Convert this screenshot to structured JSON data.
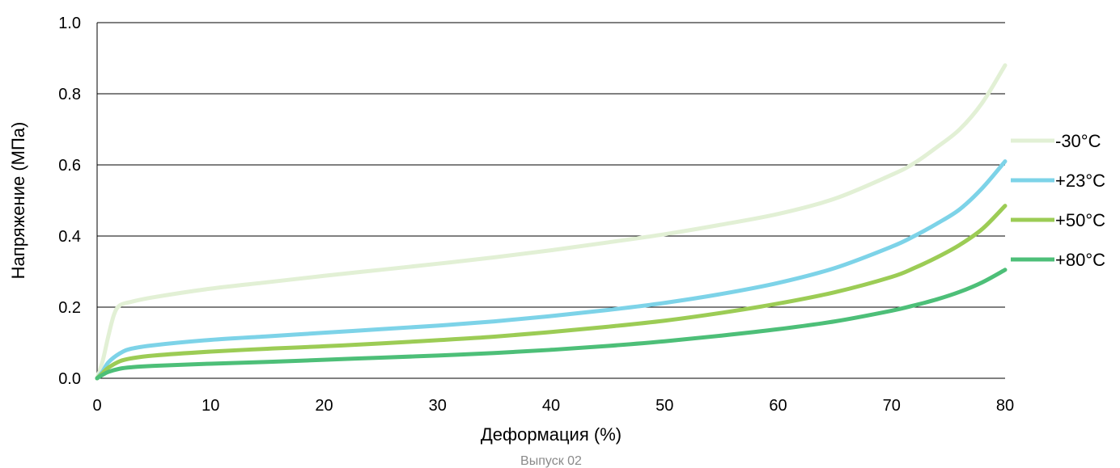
{
  "chart_data": {
    "type": "line",
    "xlabel": "Деформация (%)",
    "ylabel": "Напряжение (МПа)",
    "xlim": [
      0,
      80
    ],
    "ylim": [
      0,
      1.0
    ],
    "x_ticks": [
      "0",
      "10",
      "20",
      "30",
      "40",
      "50",
      "60",
      "70",
      "80"
    ],
    "y_ticks": [
      "0.0",
      "0.2",
      "0.4",
      "0.6",
      "0.8",
      "1.0"
    ],
    "grid": "horizontal",
    "legend_position": "right",
    "footer": "Выпуск 02",
    "series": [
      {
        "name": "-30°C",
        "color": "#e2f0d5",
        "points": [
          [
            0,
            0
          ],
          [
            0.5,
            0.05
          ],
          [
            1,
            0.12
          ],
          [
            1.5,
            0.18
          ],
          [
            2,
            0.205
          ],
          [
            3,
            0.215
          ],
          [
            5,
            0.228
          ],
          [
            10,
            0.252
          ],
          [
            15,
            0.27
          ],
          [
            20,
            0.288
          ],
          [
            25,
            0.305
          ],
          [
            30,
            0.322
          ],
          [
            35,
            0.34
          ],
          [
            40,
            0.36
          ],
          [
            45,
            0.382
          ],
          [
            50,
            0.405
          ],
          [
            55,
            0.432
          ],
          [
            60,
            0.462
          ],
          [
            65,
            0.505
          ],
          [
            70,
            0.572
          ],
          [
            72,
            0.605
          ],
          [
            74,
            0.65
          ],
          [
            76,
            0.7
          ],
          [
            78,
            0.775
          ],
          [
            80,
            0.88
          ]
        ]
      },
      {
        "name": "+23°C",
        "color": "#7dd3e8",
        "points": [
          [
            0,
            0
          ],
          [
            0.5,
            0.02
          ],
          [
            1,
            0.045
          ],
          [
            2,
            0.07
          ],
          [
            3,
            0.083
          ],
          [
            5,
            0.093
          ],
          [
            10,
            0.108
          ],
          [
            15,
            0.118
          ],
          [
            20,
            0.128
          ],
          [
            25,
            0.138
          ],
          [
            30,
            0.148
          ],
          [
            35,
            0.16
          ],
          [
            40,
            0.175
          ],
          [
            45,
            0.192
          ],
          [
            50,
            0.212
          ],
          [
            55,
            0.237
          ],
          [
            60,
            0.268
          ],
          [
            65,
            0.31
          ],
          [
            70,
            0.37
          ],
          [
            72,
            0.4
          ],
          [
            74,
            0.435
          ],
          [
            76,
            0.475
          ],
          [
            78,
            0.535
          ],
          [
            80,
            0.61
          ]
        ]
      },
      {
        "name": "+50°C",
        "color": "#9ccc55",
        "points": [
          [
            0,
            0
          ],
          [
            0.5,
            0.015
          ],
          [
            1,
            0.03
          ],
          [
            2,
            0.048
          ],
          [
            3,
            0.056
          ],
          [
            5,
            0.064
          ],
          [
            10,
            0.075
          ],
          [
            15,
            0.083
          ],
          [
            20,
            0.09
          ],
          [
            25,
            0.098
          ],
          [
            30,
            0.107
          ],
          [
            35,
            0.117
          ],
          [
            40,
            0.13
          ],
          [
            45,
            0.145
          ],
          [
            50,
            0.162
          ],
          [
            55,
            0.184
          ],
          [
            60,
            0.21
          ],
          [
            65,
            0.242
          ],
          [
            70,
            0.285
          ],
          [
            72,
            0.31
          ],
          [
            74,
            0.34
          ],
          [
            76,
            0.375
          ],
          [
            78,
            0.42
          ],
          [
            80,
            0.485
          ]
        ]
      },
      {
        "name": "+80°C",
        "color": "#4dbf78",
        "points": [
          [
            0,
            0
          ],
          [
            0.5,
            0.01
          ],
          [
            1,
            0.018
          ],
          [
            2,
            0.027
          ],
          [
            3,
            0.031
          ],
          [
            5,
            0.035
          ],
          [
            10,
            0.041
          ],
          [
            15,
            0.046
          ],
          [
            20,
            0.052
          ],
          [
            25,
            0.058
          ],
          [
            30,
            0.064
          ],
          [
            35,
            0.071
          ],
          [
            40,
            0.08
          ],
          [
            45,
            0.091
          ],
          [
            50,
            0.104
          ],
          [
            55,
            0.12
          ],
          [
            60,
            0.138
          ],
          [
            65,
            0.16
          ],
          [
            70,
            0.19
          ],
          [
            72,
            0.205
          ],
          [
            74,
            0.222
          ],
          [
            76,
            0.243
          ],
          [
            78,
            0.27
          ],
          [
            80,
            0.305
          ]
        ]
      }
    ]
  }
}
